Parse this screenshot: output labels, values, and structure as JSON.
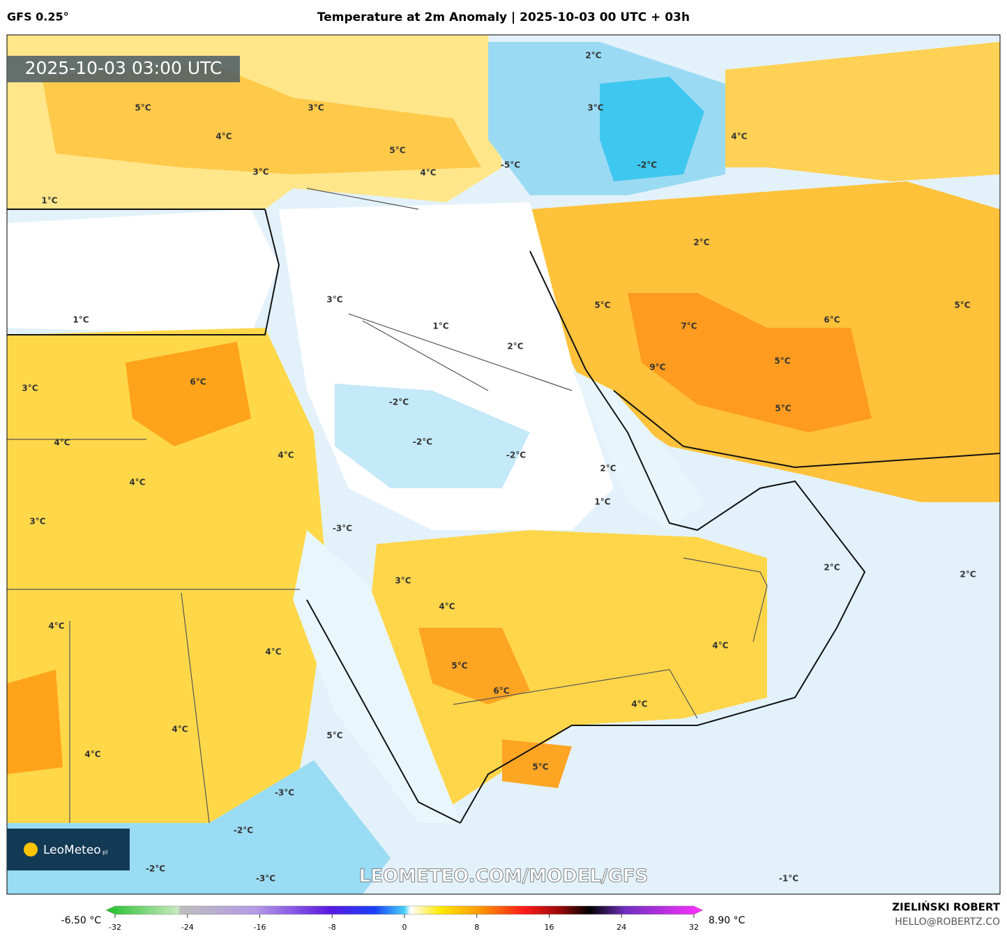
{
  "header": {
    "model": "GFS 0.25°",
    "title": "Temperature at 2m Anomaly | 2025-10-03 00 UTC + 03h"
  },
  "timestamp": "2025-10-03 03:00 UTC",
  "map_labels": [
    "5°C",
    "3°C",
    "4°C",
    "5°C",
    "3°C",
    "4°C",
    "-5°C",
    "2°C",
    "3°C",
    "4°C",
    "-2°C",
    "1°C",
    "2°C",
    "3°C",
    "5°C",
    "1°C",
    "1°C",
    "7°C",
    "6°C",
    "5°C",
    "2°C",
    "9°C",
    "5°C",
    "3°C",
    "6°C",
    "-2°C",
    "5°C",
    "4°C",
    "-2°C",
    "4°C",
    "-2°C",
    "2°C",
    "4°C",
    "1°C",
    "3°C",
    "-3°C",
    "2°C",
    "2°C",
    "3°C",
    "4°C",
    "4°C",
    "4°C",
    "4°C",
    "5°C",
    "6°C",
    "4°C",
    "4°C",
    "5°C",
    "4°C",
    "5°C",
    "-3°C",
    "-2°C",
    "-2°C",
    "-3°C",
    "-1°C"
  ],
  "logo": {
    "name": "LeoMeteo",
    "suffix": "pl"
  },
  "watermark": "LEOMETEO.COM/MODEL/GFS",
  "colorbar": {
    "min_label": "-6.50 °C",
    "max_label": "8.90 °C",
    "lim": [
      -32,
      32
    ],
    "ticks": [
      -32,
      -24,
      -16,
      -8,
      0,
      8,
      16,
      24,
      32
    ]
  },
  "footer": {
    "author": "ZIELIŃSKI ROBERT",
    "email": "HELLO@ROBERTZ.CO"
  }
}
